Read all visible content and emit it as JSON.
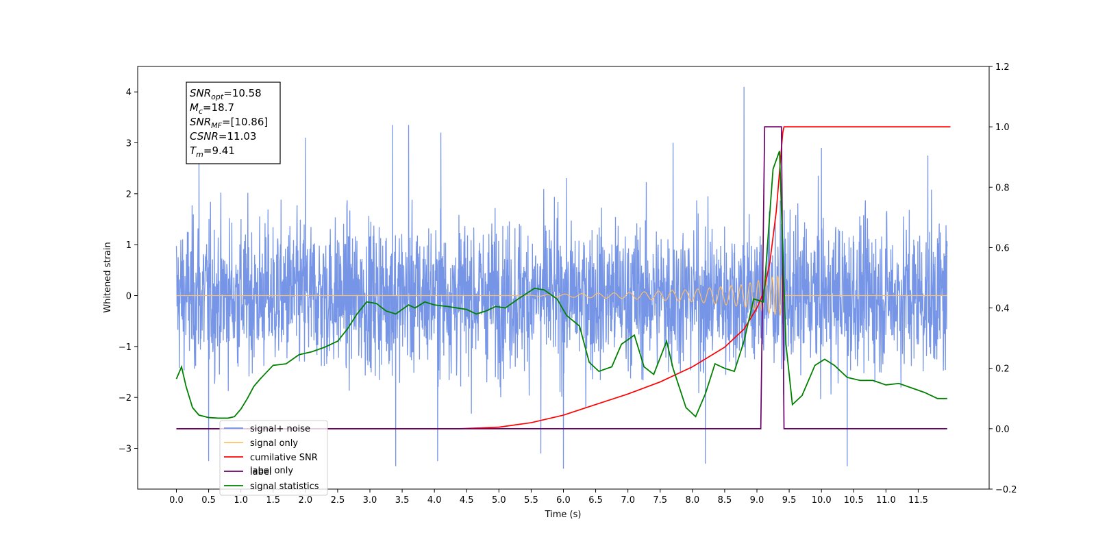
{
  "chart_data": {
    "type": "line",
    "xlabel": "Time (s)",
    "ylabel": "Whitened strain",
    "xlim": [
      -0.6,
      12.6
    ],
    "ylim": [
      -3.8,
      4.5
    ],
    "y2lim": [
      -0.2,
      1.2
    ],
    "x_ticks": [
      "0.0",
      "0.5",
      "1.0",
      "1.5",
      "2.0",
      "2.5",
      "3.0",
      "3.5",
      "4.0",
      "4.5",
      "5.0",
      "5.5",
      "6.0",
      "6.5",
      "7.0",
      "7.5",
      "8.0",
      "8.5",
      "9.0",
      "9.5",
      "10.0",
      "10.5",
      "11.0",
      "11.5"
    ],
    "y_ticks": [
      "−3",
      "−2",
      "−1",
      "0",
      "1",
      "2",
      "3",
      "4"
    ],
    "y2_ticks": [
      "−0.2",
      "0.0",
      "0.2",
      "0.4",
      "0.6",
      "0.8",
      "1.0",
      "1.2"
    ],
    "legend_position": "lower-left",
    "legend": [
      {
        "label": "signal+ noise",
        "color": "#6f8fe6"
      },
      {
        "label": "signal only",
        "color": "#ffbf66"
      },
      {
        "label": "cumilative SNR",
        "color": "#ff0000"
      },
      {
        "label": "label",
        "color": "#6a006a"
      },
      {
        "label": "signal statistics",
        "color": "#008000"
      }
    ],
    "overlay_text": "label only",
    "stats": [
      {
        "sym": "SNR",
        "sub": "opt",
        "value": "=10.58"
      },
      {
        "sym": "M",
        "sub": "c",
        "value": "=18.7"
      },
      {
        "sym": "SNR",
        "sub": "MF",
        "value": "=[10.86]"
      },
      {
        "sym": "CSNR",
        "sub": "",
        "value": "=11.03"
      },
      {
        "sym": "T",
        "sub": "m",
        "value": "=9.41"
      }
    ],
    "series": [
      {
        "name": "signal+ noise",
        "axis": "left",
        "description": "dense whitened noise, sigma ~0.9, range approx -3.4 to 4.1",
        "color": "#6f8fe6",
        "spikes": [
          [
            0.35,
            2.6
          ],
          [
            2.0,
            3.1
          ],
          [
            3.35,
            3.35
          ],
          [
            3.6,
            3.35
          ],
          [
            4.1,
            3.2
          ],
          [
            7.7,
            3.0
          ],
          [
            8.8,
            4.1
          ],
          [
            10.0,
            2.9
          ],
          [
            11.65,
            2.75
          ],
          [
            0.5,
            -3.25
          ],
          [
            3.4,
            -3.35
          ],
          [
            4.05,
            -3.25
          ],
          [
            5.65,
            -3.1
          ],
          [
            6.0,
            -3.4
          ],
          [
            8.2,
            -3.3
          ],
          [
            10.4,
            -3.35
          ]
        ]
      },
      {
        "name": "signal only",
        "axis": "left",
        "description": "chirp, zero until ~5.4 s, amplitude grows to ~0.4 near 9.4 s then stops",
        "color": "#ffbf66",
        "amplitude_envelope": [
          [
            5.4,
            0.0
          ],
          [
            6.0,
            0.03
          ],
          [
            7.0,
            0.06
          ],
          [
            8.0,
            0.12
          ],
          [
            8.8,
            0.22
          ],
          [
            9.2,
            0.35
          ],
          [
            9.4,
            0.4
          ],
          [
            9.42,
            0.0
          ],
          [
            12.0,
            0.0
          ]
        ]
      },
      {
        "name": "cumilative SNR",
        "axis": "right",
        "color": "#ff0000",
        "x": [
          0.0,
          4.4,
          5.0,
          5.5,
          6.0,
          6.5,
          7.0,
          7.5,
          8.0,
          8.5,
          8.8,
          9.0,
          9.1,
          9.2,
          9.3,
          9.35,
          9.4,
          9.42,
          12.0
        ],
        "y": [
          0.0,
          0.0,
          0.005,
          0.02,
          0.045,
          0.08,
          0.115,
          0.155,
          0.205,
          0.27,
          0.33,
          0.4,
          0.45,
          0.55,
          0.72,
          0.85,
          0.98,
          1.0,
          1.0
        ]
      },
      {
        "name": "label",
        "axis": "right",
        "color": "#6a006a",
        "x": [
          0.0,
          9.06,
          9.12,
          9.38,
          9.42,
          11.95
        ],
        "y": [
          0.0,
          0.0,
          1.0,
          1.0,
          0.0,
          0.0
        ]
      },
      {
        "name": "signal statistics",
        "axis": "right",
        "color": "#008000",
        "x": [
          0.0,
          0.08,
          0.15,
          0.25,
          0.35,
          0.5,
          0.65,
          0.8,
          0.9,
          1.0,
          1.1,
          1.2,
          1.3,
          1.5,
          1.7,
          1.9,
          2.1,
          2.3,
          2.5,
          2.65,
          2.8,
          2.95,
          3.1,
          3.25,
          3.4,
          3.6,
          3.7,
          3.85,
          4.0,
          4.2,
          4.35,
          4.5,
          4.65,
          4.8,
          4.95,
          5.1,
          5.3,
          5.55,
          5.7,
          5.9,
          6.05,
          6.25,
          6.4,
          6.55,
          6.75,
          6.9,
          7.1,
          7.25,
          7.4,
          7.6,
          7.7,
          7.9,
          8.05,
          8.2,
          8.35,
          8.5,
          8.65,
          8.8,
          8.95,
          9.1,
          9.25,
          9.35,
          9.45,
          9.55,
          9.7,
          9.9,
          10.05,
          10.2,
          10.4,
          10.6,
          10.8,
          11.0,
          11.2,
          11.4,
          11.6,
          11.8,
          11.95
        ],
        "y": [
          0.165,
          0.205,
          0.14,
          0.07,
          0.045,
          0.037,
          0.035,
          0.035,
          0.04,
          0.065,
          0.1,
          0.14,
          0.165,
          0.21,
          0.215,
          0.245,
          0.255,
          0.27,
          0.29,
          0.33,
          0.38,
          0.42,
          0.415,
          0.39,
          0.38,
          0.41,
          0.4,
          0.42,
          0.41,
          0.405,
          0.4,
          0.395,
          0.38,
          0.39,
          0.405,
          0.4,
          0.43,
          0.465,
          0.46,
          0.43,
          0.375,
          0.34,
          0.22,
          0.19,
          0.205,
          0.28,
          0.31,
          0.205,
          0.18,
          0.29,
          0.2,
          0.07,
          0.04,
          0.115,
          0.215,
          0.2,
          0.19,
          0.29,
          0.43,
          0.42,
          0.86,
          0.92,
          0.28,
          0.08,
          0.11,
          0.21,
          0.23,
          0.21,
          0.17,
          0.16,
          0.16,
          0.145,
          0.15,
          0.135,
          0.12,
          0.1,
          0.1
        ]
      }
    ]
  }
}
